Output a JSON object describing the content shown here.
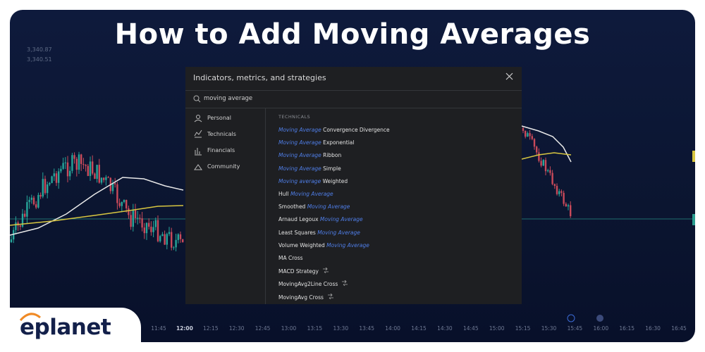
{
  "title": "How to Add Moving Averages",
  "quote_values": [
    "3,340.87",
    "3,340.51"
  ],
  "dialog": {
    "title": "Indicators, metrics, and strategies",
    "search": "moving average",
    "sidebar": [
      "Personal",
      "Technicals",
      "Financials",
      "Community"
    ],
    "section": "TECHNICALS",
    "items": [
      {
        "parts": [
          "Moving Average",
          " Convergence Divergence"
        ],
        "match": 0
      },
      {
        "parts": [
          "Moving Average",
          " Exponential"
        ],
        "match": 0
      },
      {
        "parts": [
          "Moving Average",
          " Ribbon"
        ],
        "match": 0
      },
      {
        "parts": [
          "Moving Average",
          " Simple"
        ],
        "match": 0
      },
      {
        "parts": [
          "Moving average",
          " Weighted"
        ],
        "match": 0
      },
      {
        "parts": [
          "Hull ",
          "Moving Average"
        ],
        "match": 1
      },
      {
        "parts": [
          "Smoothed ",
          "Moving Average"
        ],
        "match": 1
      },
      {
        "parts": [
          "Arnaud Legoux ",
          "Moving Average"
        ],
        "match": 1
      },
      {
        "parts": [
          "Least Squares ",
          "Moving Average"
        ],
        "match": 1
      },
      {
        "parts": [
          "Volume Weighted ",
          "Moving Average"
        ],
        "match": 1
      },
      {
        "parts": [
          "MA Cross"
        ]
      },
      {
        "parts": [
          "MACD Strategy"
        ],
        "strategy": true
      },
      {
        "parts": [
          "MovingAvg2Line Cross"
        ],
        "strategy": true
      },
      {
        "parts": [
          "MovingAvg Cross"
        ],
        "strategy": true
      }
    ]
  },
  "time_axis": [
    "11:45",
    "12:00",
    "12:15",
    "12:30",
    "12:45",
    "13:00",
    "13:15",
    "13:30",
    "13:45",
    "14:00",
    "14:15",
    "14:30",
    "14:45",
    "15:00",
    "15:15",
    "15:30",
    "15:45",
    "16:00",
    "16:15",
    "16:30",
    "16:45"
  ],
  "brand": "eplanet"
}
